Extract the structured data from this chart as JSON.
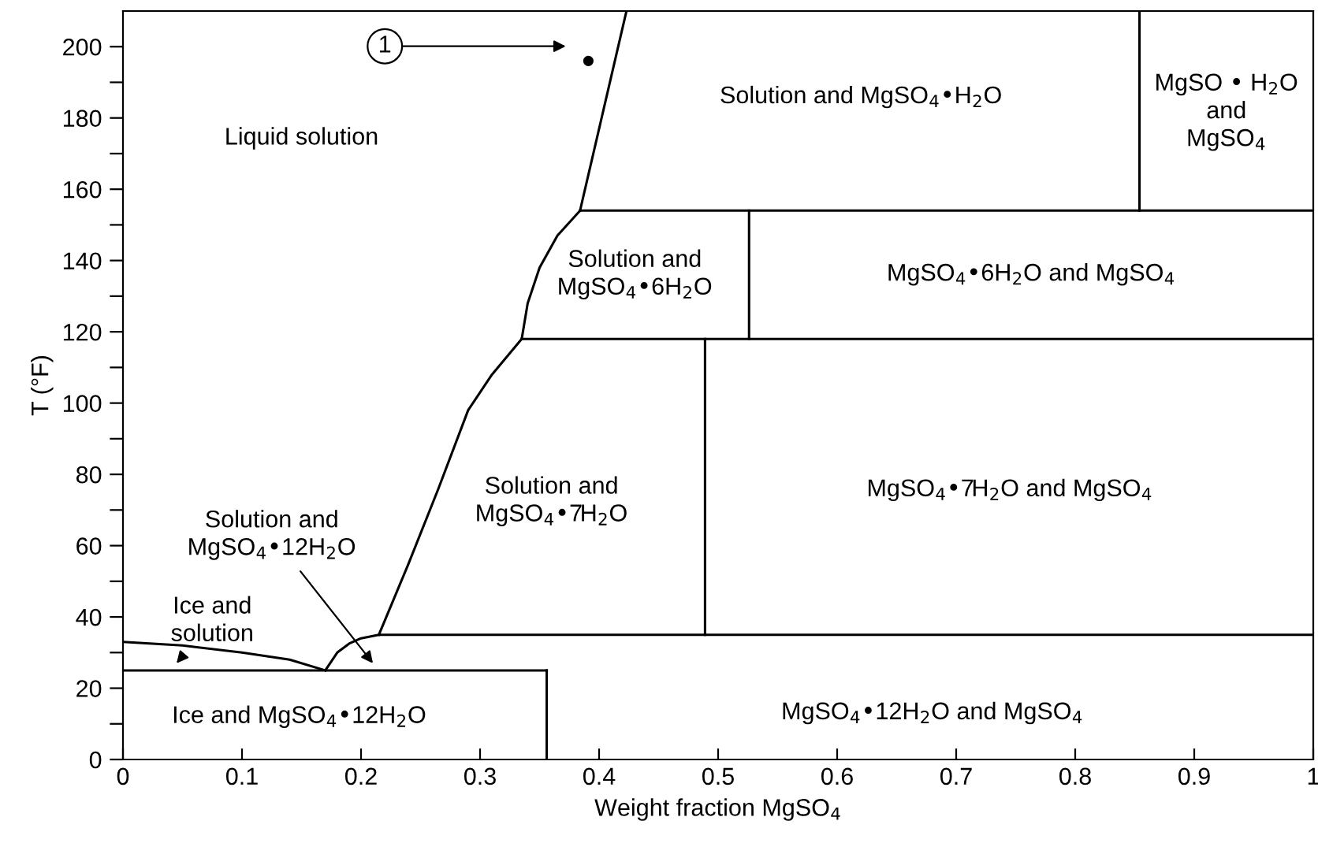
{
  "chart_data": {
    "type": "line",
    "xlabel": "Weight fraction MgSO$_{4}$",
    "ylabel": "T (°F)",
    "xlim": [
      0,
      1
    ],
    "ylim": [
      0,
      210
    ],
    "xticks": [
      0,
      0.1,
      0.2,
      0.3,
      0.4,
      0.5,
      0.6,
      0.7,
      0.8,
      0.9,
      1
    ],
    "yticks": [
      0,
      {
        "value": 10,
        "label": null
      },
      20,
      {
        "value": 30,
        "label": null
      },
      40,
      {
        "value": 50,
        "label": null
      },
      60,
      {
        "value": 70,
        "label": null
      },
      80,
      {
        "value": 90,
        "label": null
      },
      100,
      {
        "value": 110,
        "label": null
      },
      120,
      {
        "value": 130,
        "label": null
      },
      140,
      {
        "value": 150,
        "label": null
      },
      160,
      {
        "value": 170,
        "label": null
      },
      180,
      {
        "value": 190,
        "label": null
      },
      200
    ],
    "grid": false,
    "legend": false,
    "marker": "none",
    "line_style": "solid",
    "series": [
      {
        "color": "#000000",
        "x": [
          0,
          0.05,
          0.1,
          0.14,
          0.17
        ],
        "values": [
          33,
          32,
          30,
          28,
          25
        ]
      },
      {
        "color": "#000000",
        "x": [
          0.17,
          0.18,
          0.19,
          0.2,
          0.215,
          1
        ],
        "values": [
          25,
          30,
          32.5,
          34,
          35,
          35
        ]
      },
      {
        "color": "#000000",
        "x": [
          0.215,
          0.24,
          0.265,
          0.29,
          0.31,
          0.335
        ],
        "values": [
          35,
          55,
          76,
          98,
          108,
          118
        ]
      },
      {
        "color": "#000000",
        "x": [
          0.335,
          0.34,
          0.35,
          0.365,
          0.384
        ],
        "values": [
          118,
          128,
          138,
          147,
          154
        ]
      },
      {
        "color": "#000000",
        "x": [
          0.384,
          0.423
        ],
        "values": [
          154,
          210
        ]
      },
      {
        "color": "#000000",
        "x": [
          0,
          0.356
        ],
        "values": [
          25,
          25
        ]
      },
      {
        "color": "#000000",
        "x": [
          0.335,
          1
        ],
        "values": [
          118,
          118
        ]
      },
      {
        "color": "#000000",
        "x": [
          0.384,
          1
        ],
        "values": [
          154,
          154
        ]
      },
      {
        "color": "#000000",
        "x": [
          0.356,
          0.356
        ],
        "values": [
          0,
          25
        ]
      },
      {
        "color": "#000000",
        "x": [
          0.489,
          0.489
        ],
        "values": [
          35,
          118
        ]
      },
      {
        "color": "#000000",
        "x": [
          0.526,
          0.526
        ],
        "values": [
          118,
          154
        ]
      },
      {
        "color": "#000000",
        "x": [
          0.854,
          0.854
        ],
        "values": [
          154,
          210
        ]
      },
      {
        "type": "scatter",
        "marker": "circle",
        "color": "#000000",
        "x": [
          0.391
        ],
        "values": [
          196
        ]
      }
    ],
    "annotations": [
      "1",
      "Liquid solution",
      "Solution and MgSO$_{4}$•H$_{2}$O",
      "MgSO • H$_{2}$O\nand\nMgSO$_{4}$",
      "Solution and\nMgSO$_{4}$•6H$_{2}$O",
      "MgSO$_{4}$•6H$_{2}$O and MgSO$_{4}$",
      "Solution and\nMgSO$_{4}$•7H$_{2}$O",
      "MgSO$_{4}$•7H$_{2}$O and MgSO$_{4}$",
      {
        "text": "Solution and\nMgSO$_{4}$•12H$_{2}$O",
        "x": 0.21,
        "y": 27
      },
      {
        "text": "Ice and\nsolution",
        "x": 0.045,
        "y": 27
      },
      "Ice and MgSO$_{4}$•12H$_{2}$O",
      "MgSO$_{4}$•12H$_{2}$O and MgSO$_{4}$"
    ]
  }
}
